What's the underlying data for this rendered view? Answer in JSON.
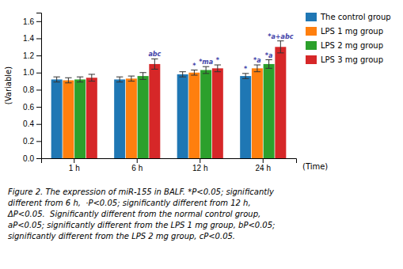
{
  "chart_data": {
    "type": "bar",
    "xlabel": "(Time)",
    "ylabel": "(Variable)",
    "categories": [
      "1 h",
      "6 h",
      "12 h",
      "24 h"
    ],
    "series": [
      {
        "name": "The control group",
        "values": [
          0.92,
          0.92,
          0.98,
          0.96
        ],
        "errors": [
          0.03,
          0.03,
          0.03,
          0.03
        ]
      },
      {
        "name": "LPS 1 mg group",
        "values": [
          0.91,
          0.93,
          1.0,
          1.05
        ],
        "errors": [
          0.03,
          0.03,
          0.03,
          0.04
        ]
      },
      {
        "name": "LPS 2 mg group",
        "values": [
          0.92,
          0.96,
          1.03,
          1.1
        ],
        "errors": [
          0.03,
          0.04,
          0.04,
          0.05
        ]
      },
      {
        "name": "LPS 3 mg group",
        "values": [
          0.94,
          1.1,
          1.05,
          1.3
        ],
        "errors": [
          0.04,
          0.06,
          0.04,
          0.07
        ]
      }
    ],
    "ylim": [
      0,
      1.7
    ],
    "yticks": [
      {
        "value": 0,
        "label": "0.0"
      },
      0.2,
      0.4,
      0.6,
      0.8,
      {
        "value": 1.0,
        "label": "1.0"
      },
      1.2,
      1.4,
      1.6
    ],
    "grid": false,
    "legend": "upper right",
    "annotations": [
      {
        "text": "abc",
        "category": "6 h",
        "series": "LPS 3 mg group",
        "color": "#4444aa"
      },
      {
        "text": "*",
        "category": "12 h",
        "series": "LPS 1 mg group",
        "color": "#4444aa"
      },
      {
        "text": "*ma",
        "category": "12 h",
        "series": "LPS 2 mg group",
        "color": "#4444aa"
      },
      {
        "text": "*",
        "category": "12 h",
        "series": "LPS 3 mg group",
        "color": "#4444aa"
      },
      {
        "text": "*",
        "category": "24 h",
        "series": "The control group",
        "color": "#4444aa"
      },
      {
        "text": "*a",
        "category": "24 h",
        "series": "LPS 1 mg group",
        "color": "#4444aa"
      },
      {
        "text": "*a",
        "category": "24 h",
        "series": "LPS 2 mg group",
        "color": "#4444aa"
      },
      {
        "text": "*a+abc",
        "category": "24 h",
        "series": "LPS 3 mg group",
        "color": "#4444aa"
      }
    ],
    "caption": [
      "Figure 2. The expression of miR-155 in BALF. *P<0.05; significantly",
      "different from 6 h,  ·P<0.05; significantly different from 12 h,",
      "ΔP<0.05.  Significantly different from the normal control group,",
      "aP<0.05; significantly different from the LPS 1 mg group, bP<0.05;",
      "significantly different from the LPS 2 mg group, cP<0.05."
    ]
  }
}
